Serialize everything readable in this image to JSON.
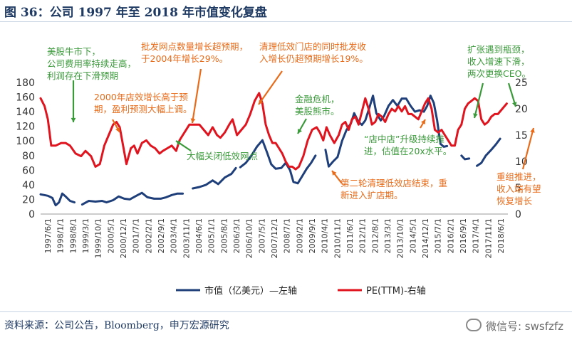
{
  "figure": {
    "title": "图 36：公司 1997 年至 2018 年市值变化复盘",
    "source": "资料来源：公司公告，Bloomberg，申万宏源研究",
    "watermark": "微信号: swsfzfz"
  },
  "colors": {
    "market_cap": "#1f3f7a",
    "pe": "#e0141e",
    "green_text": "#3a9a3a",
    "orange_text": "#e86b1a"
  },
  "chart_data": {
    "type": "line",
    "x_ticks": [
      "1997/6/1",
      "1998/1/1",
      "1998/8/1",
      "1999/3/1",
      "1999/10/1",
      "2000/5/1",
      "2000/12/1",
      "2001/7/1",
      "2002/2/1",
      "2002/9/1",
      "2003/4/1",
      "2003/11/1",
      "2004/6/1",
      "2005/1/1",
      "2005/8/1",
      "2006/3/1",
      "2006/10/1",
      "2007/5/1",
      "2007/12/1",
      "2008/7/1",
      "2009/2/1",
      "2009/9/1",
      "2010/4/1",
      "2010/11/1",
      "2011/6/1",
      "2012/1/1",
      "2012/8/1",
      "2013/3/1",
      "2013/10/1",
      "2014/5/1",
      "2014/12/1",
      "2015/7/1",
      "2016/2/1",
      "2016/9/1",
      "2017/4/1",
      "2017/11/1",
      "2018/6/1"
    ],
    "y_left": {
      "min": 0,
      "max": 180,
      "ticks": [
        0,
        20,
        40,
        60,
        80,
        100,
        120,
        140,
        160,
        180
      ]
    },
    "y_right": {
      "min": 0,
      "max": 25,
      "ticks": [
        0,
        5,
        10,
        15,
        20,
        25
      ]
    },
    "series": [
      {
        "name": "市值（亿美元）—左轴",
        "axis": "left",
        "segments": [
          [
            [
              1997.42,
              27
            ],
            [
              1997.75,
              25
            ],
            [
              1997.95,
              22
            ],
            [
              1998.1,
              12
            ],
            [
              1998.25,
              16
            ],
            [
              1998.4,
              28
            ],
            [
              1998.55,
              24
            ],
            [
              1998.75,
              18
            ],
            [
              1998.95,
              16
            ]
          ],
          [
            [
              1999.3,
              13
            ],
            [
              1999.6,
              18
            ],
            [
              1999.9,
              17
            ],
            [
              2000.2,
              18
            ],
            [
              2000.4,
              16
            ],
            [
              2000.7,
              19
            ],
            [
              2000.95,
              24
            ],
            [
              2001.2,
              21
            ],
            [
              2001.45,
              20
            ],
            [
              2001.75,
              25
            ],
            [
              2002.0,
              29
            ],
            [
              2002.25,
              23
            ],
            [
              2002.55,
              21
            ],
            [
              2002.85,
              21
            ],
            [
              2003.1,
              23
            ],
            [
              2003.35,
              26
            ],
            [
              2003.6,
              28
            ],
            [
              2003.85,
              28
            ]
          ],
          [
            [
              2004.3,
              35
            ],
            [
              2004.6,
              37
            ],
            [
              2004.9,
              40
            ],
            [
              2005.2,
              46
            ],
            [
              2005.45,
              41
            ],
            [
              2005.75,
              50
            ],
            [
              2006.05,
              55
            ],
            [
              2006.25,
              63
            ]
          ],
          [
            [
              2006.45,
              64
            ],
            [
              2006.7,
              70
            ],
            [
              2006.95,
              80
            ],
            [
              2007.2,
              92
            ],
            [
              2007.45,
              101
            ],
            [
              2007.65,
              85
            ],
            [
              2007.85,
              68
            ],
            [
              2008.05,
              62
            ],
            [
              2008.3,
              63
            ],
            [
              2008.5,
              70
            ],
            [
              2008.7,
              60
            ],
            [
              2008.85,
              44
            ],
            [
              2009.05,
              42
            ],
            [
              2009.25,
              52
            ],
            [
              2009.45,
              62
            ],
            [
              2009.65,
              70
            ],
            [
              2009.85,
              80
            ]
          ],
          [
            [
              2010.3,
              88
            ],
            [
              2010.45,
              65
            ],
            [
              2010.65,
              72
            ],
            [
              2010.85,
              78
            ],
            [
              2011.05,
              100
            ],
            [
              2011.25,
              115
            ],
            [
              2011.45,
              124
            ],
            [
              2011.6,
              138
            ],
            [
              2011.8,
              126
            ],
            [
              2011.95,
              122
            ],
            [
              2012.1,
              128
            ],
            [
              2012.3,
              147
            ],
            [
              2012.45,
              162
            ],
            [
              2012.6,
              138
            ],
            [
              2012.8,
              128
            ],
            [
              2012.95,
              134
            ],
            [
              2013.15,
              148
            ],
            [
              2013.35,
              156
            ],
            [
              2013.55,
              148
            ],
            [
              2013.75,
              158
            ],
            [
              2013.95,
              158
            ],
            [
              2014.15,
              148
            ],
            [
              2014.35,
              140
            ],
            [
              2014.55,
              142
            ],
            [
              2014.75,
              140
            ],
            [
              2014.9,
              148
            ],
            [
              2015.05,
              162
            ],
            [
              2015.2,
              152
            ],
            [
              2015.35,
              128
            ],
            [
              2015.5,
              96
            ],
            [
              2015.65,
              92
            ],
            [
              2015.8,
              93
            ]
          ],
          [
            [
              2016.45,
              80
            ],
            [
              2016.6,
              75
            ],
            [
              2016.8,
              76
            ]
          ],
          [
            [
              2017.15,
              66
            ],
            [
              2017.35,
              70
            ],
            [
              2017.55,
              80
            ],
            [
              2017.8,
              88
            ],
            [
              2018.0,
              95
            ],
            [
              2018.2,
              103
            ]
          ]
        ]
      },
      {
        "name": "PE(TTM)-右轴",
        "axis": "right",
        "segments": [
          [
            [
              1997.42,
              22
            ],
            [
              1997.6,
              20.5
            ],
            [
              1997.75,
              18
            ],
            [
              1997.9,
              13
            ],
            [
              1998.1,
              13
            ],
            [
              1998.35,
              13.5
            ],
            [
              1998.55,
              13.5
            ],
            [
              1998.75,
              13
            ],
            [
              1999.0,
              11.5
            ],
            [
              1999.25,
              11
            ],
            [
              1999.45,
              12
            ],
            [
              1999.7,
              11
            ],
            [
              1999.9,
              9
            ],
            [
              2000.1,
              9.5
            ],
            [
              2000.3,
              13
            ],
            [
              2000.5,
              15
            ],
            [
              2000.7,
              17
            ],
            [
              2000.85,
              17.5
            ],
            [
              2001.0,
              16.5
            ],
            [
              2001.15,
              13
            ],
            [
              2001.3,
              9.5
            ],
            [
              2001.5,
              12.5
            ],
            [
              2001.65,
              13
            ],
            [
              2001.8,
              11.5
            ],
            [
              2002.0,
              13.5
            ],
            [
              2002.2,
              14
            ],
            [
              2002.4,
              13
            ],
            [
              2002.6,
              12.5
            ],
            [
              2002.8,
              11.5
            ],
            [
              2002.95,
              12
            ],
            [
              2003.15,
              12.5
            ],
            [
              2003.35,
              13
            ],
            [
              2003.55,
              12
            ],
            [
              2003.7,
              14
            ],
            [
              2003.85,
              15
            ],
            [
              2004.0,
              16
            ],
            [
              2004.15,
              17
            ],
            [
              2004.35,
              17
            ],
            [
              2004.6,
              17
            ],
            [
              2004.8,
              16
            ],
            [
              2005.0,
              15
            ],
            [
              2005.2,
              16.5
            ],
            [
              2005.4,
              15
            ],
            [
              2005.55,
              14.5
            ],
            [
              2005.75,
              15.5
            ],
            [
              2005.95,
              17
            ],
            [
              2006.1,
              18
            ],
            [
              2006.3,
              15
            ],
            [
              2006.5,
              16
            ],
            [
              2006.7,
              17
            ],
            [
              2006.9,
              19
            ],
            [
              2007.1,
              21.5
            ],
            [
              2007.3,
              23
            ],
            [
              2007.45,
              21
            ],
            [
              2007.6,
              17
            ],
            [
              2007.75,
              15
            ],
            [
              2007.9,
              13.5
            ],
            [
              2008.05,
              13.5
            ],
            [
              2008.2,
              12.5
            ],
            [
              2008.35,
              11.5
            ],
            [
              2008.5,
              10
            ],
            [
              2008.65,
              9
            ],
            [
              2008.8,
              9
            ],
            [
              2008.95,
              8.5
            ],
            [
              2009.1,
              9
            ],
            [
              2009.3,
              11
            ],
            [
              2009.5,
              14
            ],
            [
              2009.7,
              16
            ],
            [
              2009.9,
              16.5
            ],
            [
              2010.05,
              15.5
            ],
            [
              2010.2,
              14
            ],
            [
              2010.35,
              16.5
            ],
            [
              2010.5,
              15
            ],
            [
              2010.7,
              13.5
            ],
            [
              2010.9,
              15
            ],
            [
              2011.05,
              17
            ],
            [
              2011.2,
              17.5
            ],
            [
              2011.35,
              16
            ],
            [
              2011.5,
              18
            ],
            [
              2011.65,
              18.5
            ],
            [
              2011.8,
              17
            ],
            [
              2011.95,
              19.5
            ],
            [
              2012.1,
              22
            ],
            [
              2012.25,
              20
            ],
            [
              2012.4,
              17
            ],
            [
              2012.55,
              17.5
            ],
            [
              2012.7,
              19
            ],
            [
              2012.85,
              18.5
            ],
            [
              2013.0,
              17.5
            ],
            [
              2013.15,
              19
            ],
            [
              2013.3,
              20
            ],
            [
              2013.45,
              19.5
            ],
            [
              2013.6,
              20.5
            ],
            [
              2013.75,
              19.5
            ],
            [
              2013.9,
              20.5
            ],
            [
              2014.05,
              19
            ],
            [
              2014.2,
              19
            ],
            [
              2014.35,
              18.5
            ],
            [
              2014.5,
              18
            ],
            [
              2014.65,
              19.5
            ],
            [
              2014.8,
              21
            ],
            [
              2014.95,
              22
            ],
            [
              2015.1,
              20
            ],
            [
              2015.25,
              16
            ],
            [
              2015.4,
              15.5
            ],
            [
              2015.55,
              16
            ],
            [
              2015.7,
              15
            ],
            [
              2015.85,
              14
            ],
            [
              2016.0,
              13
            ],
            [
              2016.15,
              13
            ],
            [
              2016.3,
              16
            ],
            [
              2016.45,
              17
            ],
            [
              2016.6,
              20
            ],
            [
              2016.75,
              21
            ],
            [
              2016.9,
              21.5
            ],
            [
              2017.05,
              22
            ],
            [
              2017.2,
              21.5
            ],
            [
              2017.35,
              18
            ],
            [
              2017.5,
              17
            ],
            [
              2017.65,
              17.5
            ],
            [
              2017.8,
              18.5
            ],
            [
              2017.95,
              19
            ],
            [
              2018.1,
              19
            ],
            [
              2018.3,
              20
            ],
            [
              2018.5,
              21
            ]
          ]
        ]
      }
    ],
    "annotations": [
      {
        "color": "green",
        "lines": [
          "美股牛市下，",
          "公司费用率持续走高，",
          "利润存在下滑预期"
        ]
      },
      {
        "color": "orange",
        "lines": [
          "2000年店效增长高于预",
          "期，盈利预测大幅上调。"
        ]
      },
      {
        "color": "orange",
        "lines": [
          "批发网点数量增长超预期，",
          "于2004年增长29%。"
        ]
      },
      {
        "color": "green",
        "lines": [
          "大幅关闭低效网点"
        ]
      },
      {
        "color": "orange",
        "lines": [
          "清理低效门店的同时批发收",
          "入增长仍超预期增长19%。"
        ]
      },
      {
        "color": "green",
        "lines": [
          "金融危机，",
          "美股熊市。"
        ]
      },
      {
        "color": "green",
        "lines": [
          "“店中店”升级持续推",
          "进，估值在20x水平。"
        ]
      },
      {
        "color": "orange",
        "lines": [
          "第二轮清理低效店结束，重",
          "新进入扩店期。"
        ]
      },
      {
        "color": "green",
        "lines": [
          "扩张遇到瓶颈，",
          "收入增速下滑，",
          "两次更换CEO。"
        ]
      },
      {
        "color": "orange",
        "lines": [
          "重组推进，",
          "收入端有望",
          "恢复增长"
        ]
      }
    ]
  }
}
